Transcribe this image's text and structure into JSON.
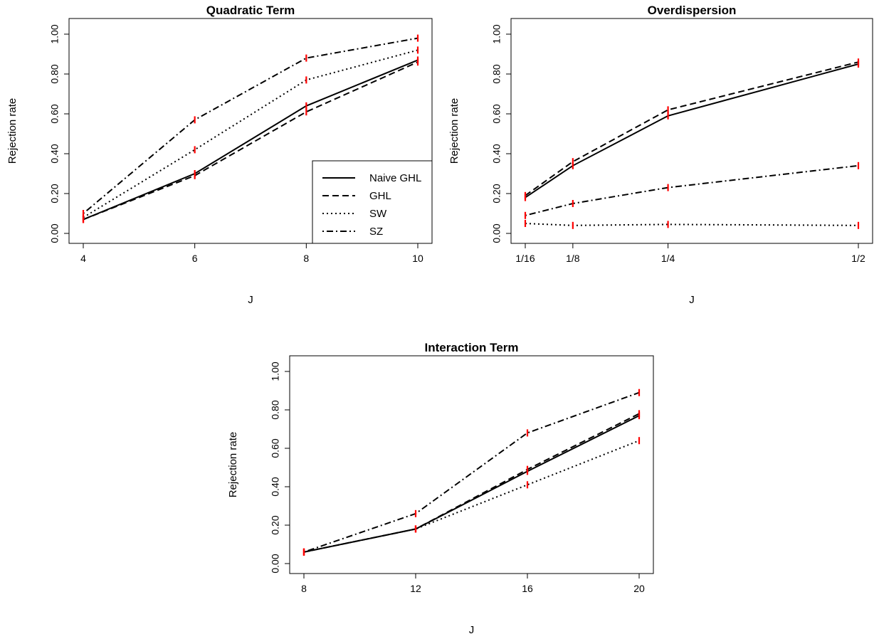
{
  "chart_data": [
    {
      "type": "line",
      "title": "Quadratic Term",
      "xlabel": "J",
      "ylabel": "Rejection rate",
      "x": [
        4,
        6,
        8,
        10
      ],
      "x_tick_labels": [
        "4",
        "6",
        "8",
        "10"
      ],
      "xlim": [
        4,
        10
      ],
      "ylim": [
        0,
        1
      ],
      "y_tick_labels": [
        "0.00",
        "0.20",
        "0.40",
        "0.60",
        "0.80",
        "1.00"
      ],
      "legend": "bottom-right",
      "series": [
        {
          "name": "Naive GHL",
          "style": "solid",
          "values": [
            0.07,
            0.3,
            0.64,
            0.87
          ]
        },
        {
          "name": "GHL",
          "style": "dashed",
          "values": [
            0.07,
            0.29,
            0.61,
            0.86
          ]
        },
        {
          "name": "SW",
          "style": "dotted",
          "values": [
            0.08,
            0.42,
            0.77,
            0.92
          ]
        },
        {
          "name": "SZ",
          "style": "dotdash",
          "values": [
            0.1,
            0.57,
            0.88,
            0.98
          ]
        }
      ],
      "error_bar_color": "#ff0000"
    },
    {
      "type": "line",
      "title": "Overdispersion",
      "xlabel": "J",
      "ylabel": "Rejection rate",
      "x": [
        0.0625,
        0.125,
        0.25,
        0.5
      ],
      "x_tick_labels": [
        "1/16",
        "1/8",
        "1/4",
        "1/2"
      ],
      "xlim": [
        0.0625,
        0.5
      ],
      "ylim": [
        0,
        1
      ],
      "y_tick_labels": [
        "0.00",
        "0.20",
        "0.40",
        "0.60",
        "0.80",
        "1.00"
      ],
      "series": [
        {
          "style": "solid",
          "values": [
            0.18,
            0.34,
            0.59,
            0.85
          ]
        },
        {
          "style": "dashed",
          "values": [
            0.19,
            0.36,
            0.62,
            0.86
          ]
        },
        {
          "style": "dotted",
          "values": [
            0.05,
            0.04,
            0.045,
            0.04
          ]
        },
        {
          "style": "dotdash",
          "values": [
            0.09,
            0.15,
            0.23,
            0.34
          ]
        }
      ],
      "error_bar_color": "#ff0000"
    },
    {
      "type": "line",
      "title": "Interaction Term",
      "xlabel": "J",
      "ylabel": "Rejection rate",
      "x": [
        8,
        12,
        16,
        20
      ],
      "x_tick_labels": [
        "8",
        "12",
        "16",
        "20"
      ],
      "xlim": [
        8,
        20
      ],
      "ylim": [
        0,
        1
      ],
      "y_tick_labels": [
        "0.00",
        "0.20",
        "0.40",
        "0.60",
        "0.80",
        "1.00"
      ],
      "series": [
        {
          "style": "solid",
          "values": [
            0.06,
            0.18,
            0.48,
            0.77
          ]
        },
        {
          "style": "dashed",
          "values": [
            0.06,
            0.18,
            0.49,
            0.78
          ]
        },
        {
          "style": "dotted",
          "values": [
            0.06,
            0.18,
            0.41,
            0.64
          ]
        },
        {
          "style": "dotdash",
          "values": [
            0.06,
            0.26,
            0.68,
            0.89
          ]
        }
      ],
      "error_bar_color": "#ff0000"
    }
  ]
}
